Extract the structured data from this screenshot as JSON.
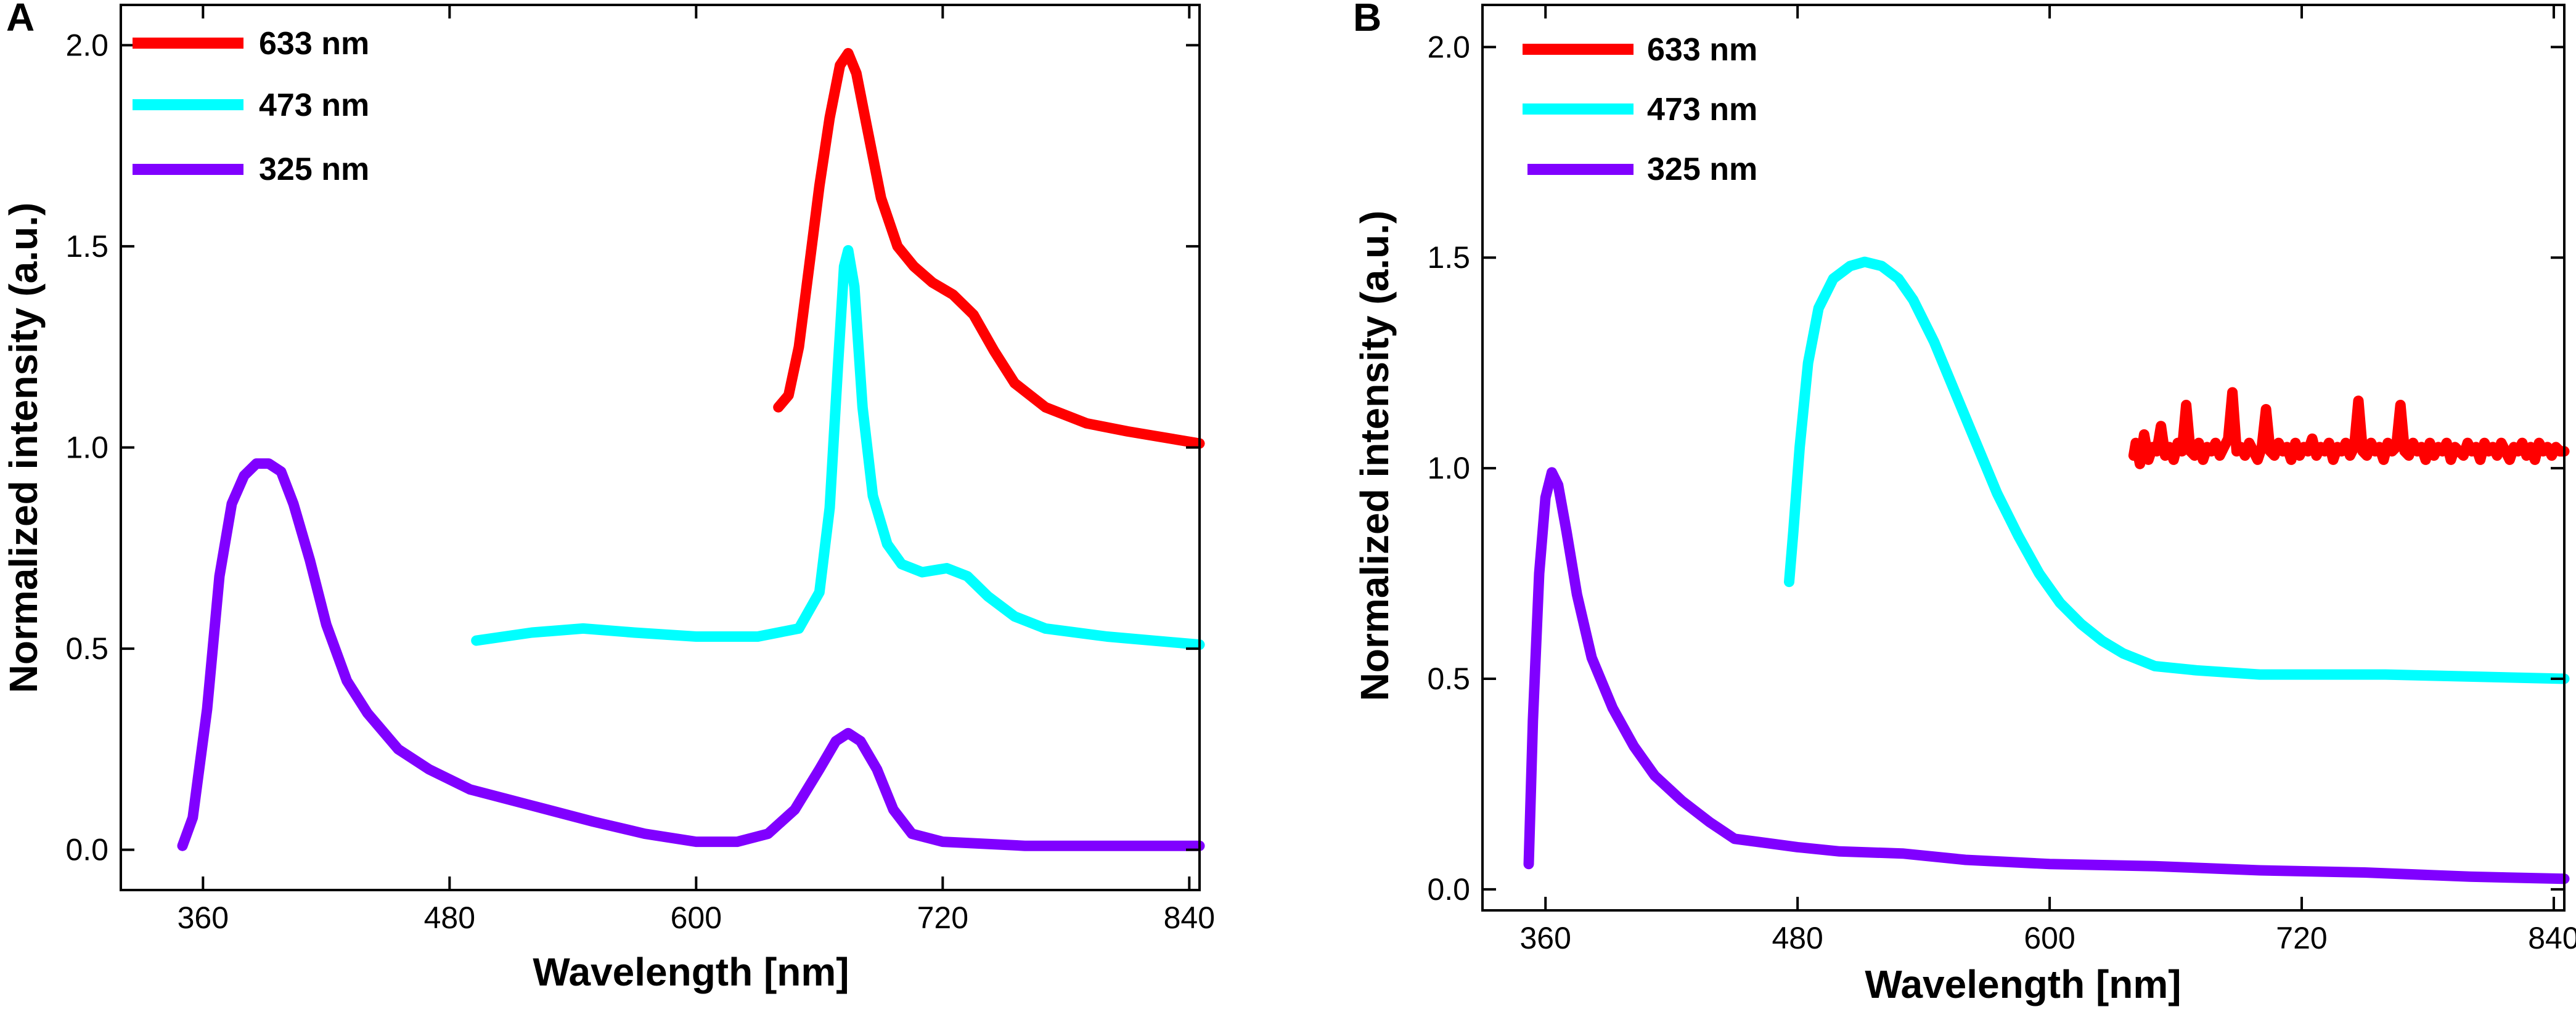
{
  "chart_data": [
    {
      "panel": "A",
      "type": "line",
      "xlabel": "Wavelength [nm]",
      "ylabel": "Normalized intensity (a.u.)",
      "xlim": [
        320,
        845
      ],
      "ylim": [
        -0.1,
        2.1
      ],
      "xticks": [
        360,
        480,
        600,
        720,
        840
      ],
      "yticks": [
        0.0,
        0.5,
        1.0,
        1.5,
        2.0
      ],
      "xtick_labels": [
        "360",
        "480",
        "600",
        "720",
        "840"
      ],
      "ytick_labels": [
        "0.0",
        "0.5",
        "1.0",
        "1.5",
        "2.0"
      ],
      "legend_position": "top-left",
      "series": [
        {
          "name": "633 nm",
          "color": "#ff0000",
          "points": [
            [
              640,
              1.1
            ],
            [
              645,
              1.13
            ],
            [
              650,
              1.25
            ],
            [
              655,
              1.45
            ],
            [
              660,
              1.65
            ],
            [
              665,
              1.82
            ],
            [
              670,
              1.95
            ],
            [
              674,
              1.98
            ],
            [
              678,
              1.93
            ],
            [
              683,
              1.8
            ],
            [
              690,
              1.62
            ],
            [
              698,
              1.5
            ],
            [
              706,
              1.45
            ],
            [
              715,
              1.41
            ],
            [
              725,
              1.38
            ],
            [
              735,
              1.33
            ],
            [
              745,
              1.24
            ],
            [
              755,
              1.16
            ],
            [
              770,
              1.1
            ],
            [
              790,
              1.06
            ],
            [
              810,
              1.04
            ],
            [
              845,
              1.01
            ]
          ]
        },
        {
          "name": "473 nm",
          "color": "#00ffff",
          "points": [
            [
              493,
              0.52
            ],
            [
              520,
              0.54
            ],
            [
              545,
              0.55
            ],
            [
              570,
              0.54
            ],
            [
              600,
              0.53
            ],
            [
              630,
              0.53
            ],
            [
              650,
              0.55
            ],
            [
              660,
              0.64
            ],
            [
              665,
              0.85
            ],
            [
              669,
              1.2
            ],
            [
              672,
              1.45
            ],
            [
              674,
              1.49
            ],
            [
              677,
              1.4
            ],
            [
              681,
              1.1
            ],
            [
              686,
              0.88
            ],
            [
              693,
              0.76
            ],
            [
              700,
              0.71
            ],
            [
              710,
              0.69
            ],
            [
              722,
              0.7
            ],
            [
              732,
              0.68
            ],
            [
              742,
              0.63
            ],
            [
              755,
              0.58
            ],
            [
              770,
              0.55
            ],
            [
              800,
              0.53
            ],
            [
              845,
              0.51
            ]
          ]
        },
        {
          "name": "325 nm",
          "color": "#8000ff",
          "points": [
            [
              350,
              0.01
            ],
            [
              355,
              0.08
            ],
            [
              362,
              0.35
            ],
            [
              368,
              0.68
            ],
            [
              374,
              0.86
            ],
            [
              380,
              0.93
            ],
            [
              386,
              0.96
            ],
            [
              392,
              0.96
            ],
            [
              398,
              0.94
            ],
            [
              404,
              0.86
            ],
            [
              412,
              0.72
            ],
            [
              420,
              0.56
            ],
            [
              430,
              0.42
            ],
            [
              440,
              0.34
            ],
            [
              455,
              0.25
            ],
            [
              470,
              0.2
            ],
            [
              490,
              0.15
            ],
            [
              520,
              0.11
            ],
            [
              550,
              0.07
            ],
            [
              575,
              0.04
            ],
            [
              600,
              0.02
            ],
            [
              620,
              0.02
            ],
            [
              635,
              0.04
            ],
            [
              648,
              0.1
            ],
            [
              660,
              0.2
            ],
            [
              668,
              0.27
            ],
            [
              674,
              0.29
            ],
            [
              680,
              0.27
            ],
            [
              688,
              0.2
            ],
            [
              696,
              0.1
            ],
            [
              705,
              0.04
            ],
            [
              720,
              0.02
            ],
            [
              760,
              0.01
            ],
            [
              800,
              0.01
            ],
            [
              845,
              0.01
            ]
          ]
        }
      ]
    },
    {
      "panel": "B",
      "type": "line",
      "xlabel": "Wavelength [nm]",
      "ylabel": "Normalized intensity (a.u.)",
      "xlim": [
        330,
        845
      ],
      "ylim": [
        -0.05,
        2.1
      ],
      "xticks": [
        360,
        480,
        600,
        720,
        840
      ],
      "yticks": [
        0.0,
        0.5,
        1.0,
        1.5,
        2.0
      ],
      "xtick_labels": [
        "360",
        "480",
        "600",
        "720",
        "840"
      ],
      "ytick_labels": [
        "0.0",
        "0.5",
        "1.0",
        "1.5",
        "2.0"
      ],
      "legend_position": "top-left",
      "series": [
        {
          "name": "633 nm",
          "color": "#ff0000",
          "points": [
            [
              640,
              1.03
            ],
            [
              641,
              1.06
            ],
            [
              643,
              1.01
            ],
            [
              645,
              1.08
            ],
            [
              647,
              1.02
            ],
            [
              649,
              1.05
            ],
            [
              651,
              1.04
            ],
            [
              653,
              1.1
            ],
            [
              655,
              1.03
            ],
            [
              657,
              1.05
            ],
            [
              659,
              1.02
            ],
            [
              661,
              1.06
            ],
            [
              663,
              1.04
            ],
            [
              665,
              1.15
            ],
            [
              667,
              1.04
            ],
            [
              669,
              1.03
            ],
            [
              671,
              1.06
            ],
            [
              673,
              1.02
            ],
            [
              675,
              1.05
            ],
            [
              677,
              1.04
            ],
            [
              679,
              1.06
            ],
            [
              681,
              1.03
            ],
            [
              683,
              1.05
            ],
            [
              685,
              1.07
            ],
            [
              687,
              1.18
            ],
            [
              689,
              1.04
            ],
            [
              691,
              1.05
            ],
            [
              693,
              1.03
            ],
            [
              695,
              1.06
            ],
            [
              697,
              1.04
            ],
            [
              699,
              1.02
            ],
            [
              701,
              1.05
            ],
            [
              703,
              1.14
            ],
            [
              705,
              1.04
            ],
            [
              707,
              1.03
            ],
            [
              709,
              1.06
            ],
            [
              711,
              1.04
            ],
            [
              713,
              1.05
            ],
            [
              715,
              1.02
            ],
            [
              717,
              1.06
            ],
            [
              719,
              1.03
            ],
            [
              721,
              1.05
            ],
            [
              723,
              1.04
            ],
            [
              725,
              1.07
            ],
            [
              727,
              1.03
            ],
            [
              729,
              1.05
            ],
            [
              731,
              1.04
            ],
            [
              733,
              1.06
            ],
            [
              735,
              1.02
            ],
            [
              737,
              1.05
            ],
            [
              739,
              1.04
            ],
            [
              741,
              1.06
            ],
            [
              743,
              1.03
            ],
            [
              745,
              1.05
            ],
            [
              747,
              1.16
            ],
            [
              749,
              1.04
            ],
            [
              751,
              1.03
            ],
            [
              753,
              1.06
            ],
            [
              755,
              1.04
            ],
            [
              757,
              1.05
            ],
            [
              759,
              1.02
            ],
            [
              761,
              1.06
            ],
            [
              763,
              1.04
            ],
            [
              765,
              1.05
            ],
            [
              767,
              1.15
            ],
            [
              769,
              1.04
            ],
            [
              771,
              1.03
            ],
            [
              773,
              1.06
            ],
            [
              775,
              1.04
            ],
            [
              777,
              1.05
            ],
            [
              779,
              1.02
            ],
            [
              781,
              1.06
            ],
            [
              783,
              1.03
            ],
            [
              785,
              1.05
            ],
            [
              787,
              1.04
            ],
            [
              789,
              1.06
            ],
            [
              791,
              1.02
            ],
            [
              793,
              1.05
            ],
            [
              795,
              1.04
            ],
            [
              797,
              1.03
            ],
            [
              799,
              1.06
            ],
            [
              801,
              1.04
            ],
            [
              803,
              1.05
            ],
            [
              805,
              1.02
            ],
            [
              807,
              1.06
            ],
            [
              809,
              1.04
            ],
            [
              811,
              1.05
            ],
            [
              813,
              1.03
            ],
            [
              815,
              1.06
            ],
            [
              817,
              1.04
            ],
            [
              819,
              1.02
            ],
            [
              821,
              1.05
            ],
            [
              823,
              1.04
            ],
            [
              825,
              1.06
            ],
            [
              827,
              1.03
            ],
            [
              829,
              1.05
            ],
            [
              831,
              1.02
            ],
            [
              833,
              1.06
            ],
            [
              835,
              1.04
            ],
            [
              837,
              1.05
            ],
            [
              839,
              1.03
            ],
            [
              841,
              1.05
            ],
            [
              843,
              1.04
            ],
            [
              845,
              1.04
            ]
          ]
        },
        {
          "name": "473 nm",
          "color": "#00ffff",
          "points": [
            [
              476,
              0.73
            ],
            [
              478,
              0.85
            ],
            [
              481,
              1.05
            ],
            [
              485,
              1.25
            ],
            [
              490,
              1.38
            ],
            [
              497,
              1.45
            ],
            [
              505,
              1.48
            ],
            [
              512,
              1.49
            ],
            [
              520,
              1.48
            ],
            [
              528,
              1.45
            ],
            [
              535,
              1.4
            ],
            [
              545,
              1.3
            ],
            [
              555,
              1.18
            ],
            [
              565,
              1.06
            ],
            [
              575,
              0.94
            ],
            [
              585,
              0.84
            ],
            [
              595,
              0.75
            ],
            [
              605,
              0.68
            ],
            [
              615,
              0.63
            ],
            [
              625,
              0.59
            ],
            [
              635,
              0.56
            ],
            [
              650,
              0.53
            ],
            [
              670,
              0.52
            ],
            [
              700,
              0.51
            ],
            [
              760,
              0.51
            ],
            [
              845,
              0.5
            ]
          ]
        },
        {
          "name": "325 nm",
          "color": "#8000ff",
          "points": [
            [
              352,
              0.06
            ],
            [
              354,
              0.4
            ],
            [
              357,
              0.75
            ],
            [
              360,
              0.93
            ],
            [
              363,
              0.99
            ],
            [
              366,
              0.96
            ],
            [
              370,
              0.85
            ],
            [
              375,
              0.7
            ],
            [
              382,
              0.55
            ],
            [
              392,
              0.43
            ],
            [
              402,
              0.34
            ],
            [
              412,
              0.27
            ],
            [
              425,
              0.21
            ],
            [
              438,
              0.16
            ],
            [
              450,
              0.12
            ],
            [
              465,
              0.11
            ],
            [
              480,
              0.1
            ],
            [
              500,
              0.09
            ],
            [
              530,
              0.085
            ],
            [
              560,
              0.07
            ],
            [
              600,
              0.06
            ],
            [
              650,
              0.055
            ],
            [
              700,
              0.045
            ],
            [
              750,
              0.04
            ],
            [
              800,
              0.03
            ],
            [
              845,
              0.025
            ]
          ]
        }
      ]
    }
  ]
}
